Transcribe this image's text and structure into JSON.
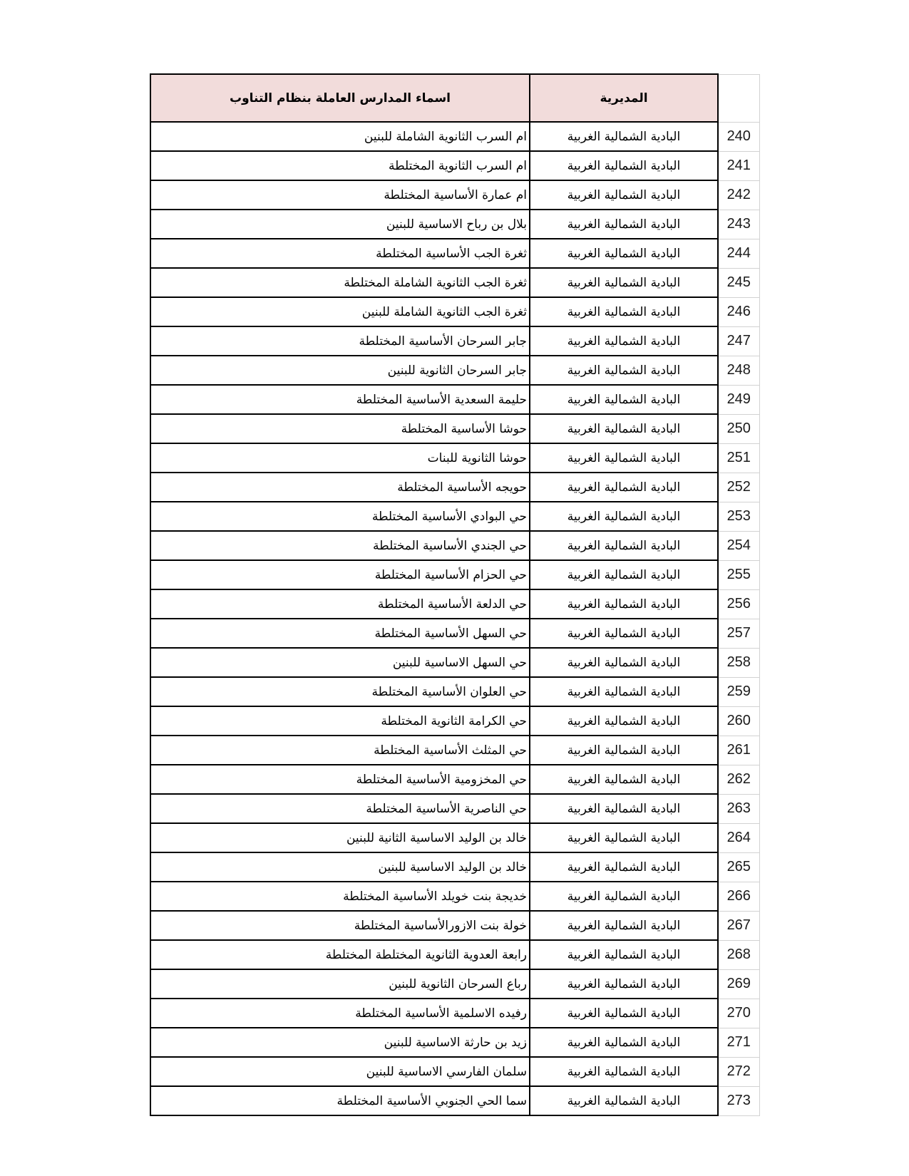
{
  "table": {
    "colors": {
      "header_bg": "#f2dcdb",
      "table_border": "#000000",
      "gridline": "#d2d2d2"
    },
    "header": {
      "schools_label": "اسماء المدارس العاملة بنظام التناوب",
      "directorate_label": "المديرية"
    },
    "rows": [
      {
        "num": "240",
        "school": "ام السرب الثانوية الشاملة للبنين",
        "directorate": "البادية الشمالية الغربية"
      },
      {
        "num": "241",
        "school": "ام السرب الثانوية المختلطة",
        "directorate": "البادية الشمالية الغربية"
      },
      {
        "num": "242",
        "school": "ام عمارة الأساسية المختلطة",
        "directorate": "البادية الشمالية الغربية"
      },
      {
        "num": "243",
        "school": "بلال بن رباح الاساسية للبنين",
        "directorate": "البادية الشمالية الغربية"
      },
      {
        "num": "244",
        "school": "ثغرة الجب الأساسية المختلطة",
        "directorate": "البادية الشمالية الغربية"
      },
      {
        "num": "245",
        "school": "ثغرة الجب الثانوية الشاملة المختلطة",
        "directorate": "البادية الشمالية الغربية"
      },
      {
        "num": "246",
        "school": "ثغرة الجب الثانوية الشاملة للبنين",
        "directorate": "البادية الشمالية الغربية"
      },
      {
        "num": "247",
        "school": "جابر السرحان الأساسية المختلطة",
        "directorate": "البادية الشمالية الغربية"
      },
      {
        "num": "248",
        "school": "جابر السرحان الثانوية للبنين",
        "directorate": "البادية الشمالية الغربية"
      },
      {
        "num": "249",
        "school": "حليمة السعدية الأساسية المختلطة",
        "directorate": "البادية الشمالية الغربية"
      },
      {
        "num": "250",
        "school": "حوشا الأساسية المختلطة",
        "directorate": "البادية الشمالية الغربية"
      },
      {
        "num": "251",
        "school": "حوشا الثانوية للبنات",
        "directorate": "البادية الشمالية الغربية"
      },
      {
        "num": "252",
        "school": "حويجه الأساسية المختلطة",
        "directorate": "البادية الشمالية الغربية"
      },
      {
        "num": "253",
        "school": "حي البوادي الأساسية المختلطة",
        "directorate": "البادية الشمالية الغربية"
      },
      {
        "num": "254",
        "school": "حي الجندي الأساسية المختلطة",
        "directorate": "البادية الشمالية الغربية"
      },
      {
        "num": "255",
        "school": "حي الحزام الأساسية المختلطة",
        "directorate": "البادية الشمالية الغربية"
      },
      {
        "num": "256",
        "school": "حي الدلعة الأساسية المختلطة",
        "directorate": "البادية الشمالية الغربية"
      },
      {
        "num": "257",
        "school": "حي السهل الأساسية المختلطة",
        "directorate": "البادية الشمالية الغربية"
      },
      {
        "num": "258",
        "school": "حي السهل الاساسية للبنين",
        "directorate": "البادية الشمالية الغربية"
      },
      {
        "num": "259",
        "school": "حي العلوان الأساسية المختلطة",
        "directorate": "البادية الشمالية الغربية"
      },
      {
        "num": "260",
        "school": "حي الكرامة الثانوية المختلطة",
        "directorate": "البادية الشمالية الغربية"
      },
      {
        "num": "261",
        "school": "حي المثلث الأساسية المختلطة",
        "directorate": "البادية الشمالية الغربية"
      },
      {
        "num": "262",
        "school": "حي المخزومية الأساسية المختلطة",
        "directorate": "البادية الشمالية الغربية"
      },
      {
        "num": "263",
        "school": "حي الناصرية الأساسية المختلطة",
        "directorate": "البادية الشمالية الغربية"
      },
      {
        "num": "264",
        "school": "خالد بن الوليد الاساسية الثانية للبنين",
        "directorate": "البادية الشمالية الغربية"
      },
      {
        "num": "265",
        "school": "خالد بن الوليد الاساسية للبنين",
        "directorate": "البادية الشمالية الغربية"
      },
      {
        "num": "266",
        "school": "خديجة بنت خويلد الأساسية المختلطة",
        "directorate": "البادية الشمالية الغربية"
      },
      {
        "num": "267",
        "school": "خولة بنت الازورالأساسية المختلطة",
        "directorate": "البادية الشمالية الغربية"
      },
      {
        "num": "268",
        "school": "رابعة العدوية الثانوية المختلطة المختلطة",
        "directorate": "البادية الشمالية الغربية"
      },
      {
        "num": "269",
        "school": "رباع السرحان الثانوية للبنين",
        "directorate": "البادية الشمالية الغربية"
      },
      {
        "num": "270",
        "school": "رفيده الاسلمية الأساسية المختلطة",
        "directorate": "البادية الشمالية الغربية"
      },
      {
        "num": "271",
        "school": "زيد بن حارثة الاساسية للبنين",
        "directorate": "البادية الشمالية الغربية"
      },
      {
        "num": "272",
        "school": "سلمان الفارسي الاساسية للبنين",
        "directorate": "البادية الشمالية الغربية"
      },
      {
        "num": "273",
        "school": "سما الحي الجنوبي الأساسية المختلطة",
        "directorate": "البادية الشمالية الغربية"
      }
    ]
  }
}
